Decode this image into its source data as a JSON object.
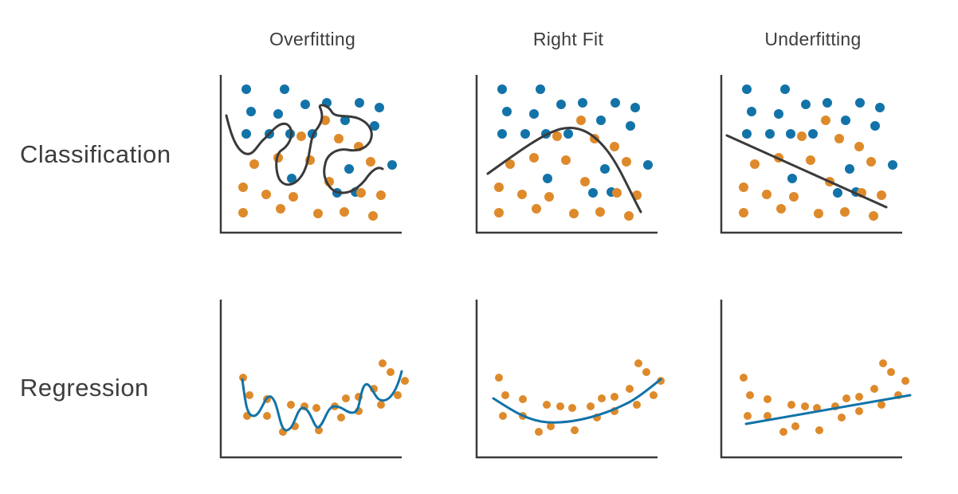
{
  "columns": [
    "Overfitting",
    "Right Fit",
    "Underfitting"
  ],
  "rows": [
    "Classification",
    "Regression"
  ],
  "colors": {
    "class_a": "#1273a8",
    "class_b": "#de8a2b",
    "axis": "#3a3a3a",
    "fit_regression": "#1273a8"
  }
}
